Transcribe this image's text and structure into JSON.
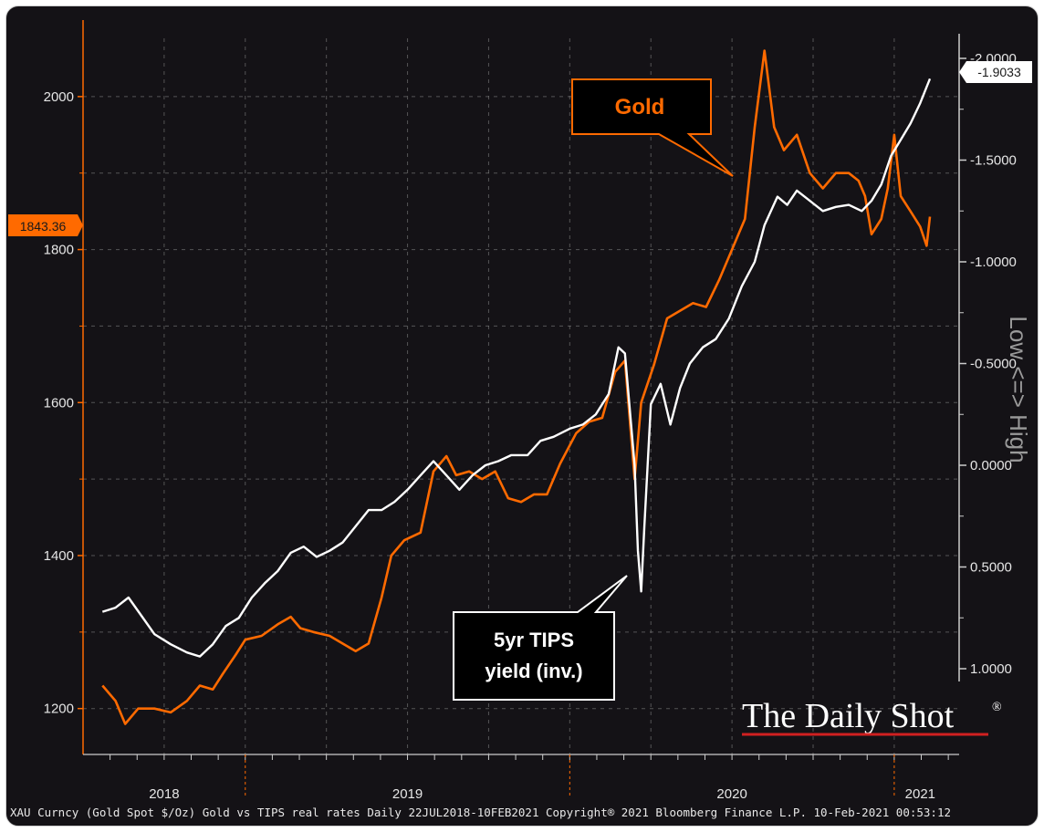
{
  "chart_data": {
    "type": "line",
    "footer": "XAU Curncy (Gold Spot  $/Oz) Gold vs TIPS real rates  Daily 22JUL2018-10FEB2021 Copyright® 2021 Bloomberg Finance L.P. 10-Feb-2021 00:53:12",
    "watermark": "The Daily Shot",
    "watermark_mark": "®",
    "left_axis": {
      "ticks": [
        "1200",
        "1400",
        "1600",
        "1800",
        "2000"
      ],
      "ylim": [
        1140,
        2100
      ],
      "color": "#ff6a00"
    },
    "right_axis": {
      "ticks": [
        "-2.0000",
        "-1.5000",
        "-1.0000",
        "-0.5000",
        "0.0000",
        "0.5000",
        "1.0000"
      ],
      "ylim_inverted": [
        1.1,
        -2.1
      ],
      "label": "Low <=> High"
    },
    "x_labels": [
      "2018",
      "2019",
      "2020",
      "2021"
    ],
    "last_values": {
      "gold": "1843.36",
      "tips": "-1.9033"
    },
    "series": [
      {
        "name": "Gold",
        "color": "#ff6a00",
        "axis": "left",
        "points": [
          [
            2018.56,
            1230
          ],
          [
            2018.6,
            1210
          ],
          [
            2018.63,
            1180
          ],
          [
            2018.67,
            1200
          ],
          [
            2018.72,
            1200
          ],
          [
            2018.77,
            1195
          ],
          [
            2018.82,
            1210
          ],
          [
            2018.86,
            1230
          ],
          [
            2018.9,
            1225
          ],
          [
            2018.93,
            1245
          ],
          [
            2018.97,
            1270
          ],
          [
            2019.0,
            1290
          ],
          [
            2019.05,
            1295
          ],
          [
            2019.1,
            1310
          ],
          [
            2019.14,
            1320
          ],
          [
            2019.17,
            1305
          ],
          [
            2019.21,
            1300
          ],
          [
            2019.26,
            1295
          ],
          [
            2019.3,
            1285
          ],
          [
            2019.34,
            1275
          ],
          [
            2019.38,
            1285
          ],
          [
            2019.42,
            1345
          ],
          [
            2019.45,
            1400
          ],
          [
            2019.49,
            1420
          ],
          [
            2019.54,
            1430
          ],
          [
            2019.58,
            1510
          ],
          [
            2019.62,
            1530
          ],
          [
            2019.65,
            1505
          ],
          [
            2019.69,
            1510
          ],
          [
            2019.73,
            1500
          ],
          [
            2019.77,
            1510
          ],
          [
            2019.81,
            1475
          ],
          [
            2019.85,
            1470
          ],
          [
            2019.89,
            1480
          ],
          [
            2019.93,
            1480
          ],
          [
            2019.97,
            1520
          ],
          [
            2020.02,
            1560
          ],
          [
            2020.06,
            1575
          ],
          [
            2020.1,
            1580
          ],
          [
            2020.14,
            1640
          ],
          [
            2020.17,
            1655
          ],
          [
            2020.2,
            1500
          ],
          [
            2020.22,
            1600
          ],
          [
            2020.26,
            1650
          ],
          [
            2020.3,
            1710
          ],
          [
            2020.34,
            1720
          ],
          [
            2020.38,
            1730
          ],
          [
            2020.42,
            1725
          ],
          [
            2020.46,
            1760
          ],
          [
            2020.5,
            1800
          ],
          [
            2020.54,
            1840
          ],
          [
            2020.57,
            1960
          ],
          [
            2020.6,
            2060
          ],
          [
            2020.63,
            1960
          ],
          [
            2020.66,
            1930
          ],
          [
            2020.7,
            1950
          ],
          [
            2020.74,
            1900
          ],
          [
            2020.78,
            1880
          ],
          [
            2020.82,
            1900
          ],
          [
            2020.86,
            1900
          ],
          [
            2020.89,
            1890
          ],
          [
            2020.91,
            1870
          ],
          [
            2020.93,
            1820
          ],
          [
            2020.96,
            1840
          ],
          [
            2020.98,
            1880
          ],
          [
            2021.0,
            1950
          ],
          [
            2021.02,
            1870
          ],
          [
            2021.05,
            1850
          ],
          [
            2021.08,
            1830
          ],
          [
            2021.1,
            1805
          ],
          [
            2021.11,
            1843
          ]
        ]
      },
      {
        "name": "5yr TIPS yield (inv.)",
        "color": "#ffffff",
        "axis": "right",
        "points": [
          [
            2018.56,
            0.72
          ],
          [
            2018.6,
            0.7
          ],
          [
            2018.64,
            0.65
          ],
          [
            2018.68,
            0.74
          ],
          [
            2018.72,
            0.83
          ],
          [
            2018.77,
            0.88
          ],
          [
            2018.82,
            0.92
          ],
          [
            2018.86,
            0.94
          ],
          [
            2018.9,
            0.88
          ],
          [
            2018.94,
            0.79
          ],
          [
            2018.98,
            0.75
          ],
          [
            2019.02,
            0.65
          ],
          [
            2019.06,
            0.58
          ],
          [
            2019.1,
            0.52
          ],
          [
            2019.14,
            0.43
          ],
          [
            2019.18,
            0.4
          ],
          [
            2019.22,
            0.45
          ],
          [
            2019.26,
            0.42
          ],
          [
            2019.3,
            0.38
          ],
          [
            2019.34,
            0.3
          ],
          [
            2019.38,
            0.22
          ],
          [
            2019.42,
            0.22
          ],
          [
            2019.46,
            0.18
          ],
          [
            2019.5,
            0.12
          ],
          [
            2019.54,
            0.05
          ],
          [
            2019.58,
            -0.02
          ],
          [
            2019.62,
            0.05
          ],
          [
            2019.66,
            0.12
          ],
          [
            2019.7,
            0.05
          ],
          [
            2019.74,
            0.0
          ],
          [
            2019.78,
            -0.02
          ],
          [
            2019.82,
            -0.05
          ],
          [
            2019.87,
            -0.05
          ],
          [
            2019.91,
            -0.12
          ],
          [
            2019.95,
            -0.14
          ],
          [
            2020.0,
            -0.18
          ],
          [
            2020.04,
            -0.2
          ],
          [
            2020.08,
            -0.25
          ],
          [
            2020.12,
            -0.35
          ],
          [
            2020.15,
            -0.58
          ],
          [
            2020.17,
            -0.55
          ],
          [
            2020.2,
            0.0
          ],
          [
            2020.21,
            0.42
          ],
          [
            2020.22,
            0.62
          ],
          [
            2020.23,
            0.3
          ],
          [
            2020.25,
            -0.3
          ],
          [
            2020.28,
            -0.4
          ],
          [
            2020.31,
            -0.2
          ],
          [
            2020.34,
            -0.38
          ],
          [
            2020.37,
            -0.5
          ],
          [
            2020.41,
            -0.58
          ],
          [
            2020.45,
            -0.62
          ],
          [
            2020.49,
            -0.72
          ],
          [
            2020.53,
            -0.88
          ],
          [
            2020.57,
            -1.0
          ],
          [
            2020.6,
            -1.18
          ],
          [
            2020.64,
            -1.32
          ],
          [
            2020.67,
            -1.28
          ],
          [
            2020.7,
            -1.35
          ],
          [
            2020.74,
            -1.3
          ],
          [
            2020.78,
            -1.25
          ],
          [
            2020.82,
            -1.27
          ],
          [
            2020.86,
            -1.28
          ],
          [
            2020.9,
            -1.25
          ],
          [
            2020.93,
            -1.3
          ],
          [
            2020.96,
            -1.38
          ],
          [
            2020.99,
            -1.52
          ],
          [
            2021.02,
            -1.6
          ],
          [
            2021.05,
            -1.68
          ],
          [
            2021.08,
            -1.78
          ],
          [
            2021.11,
            -1.9
          ]
        ]
      }
    ],
    "annotations": [
      {
        "text": "Gold",
        "series": "Gold"
      },
      {
        "text": "5yr TIPS",
        "text2": "yield (inv.)",
        "series": "5yr TIPS yield (inv.)"
      }
    ]
  }
}
